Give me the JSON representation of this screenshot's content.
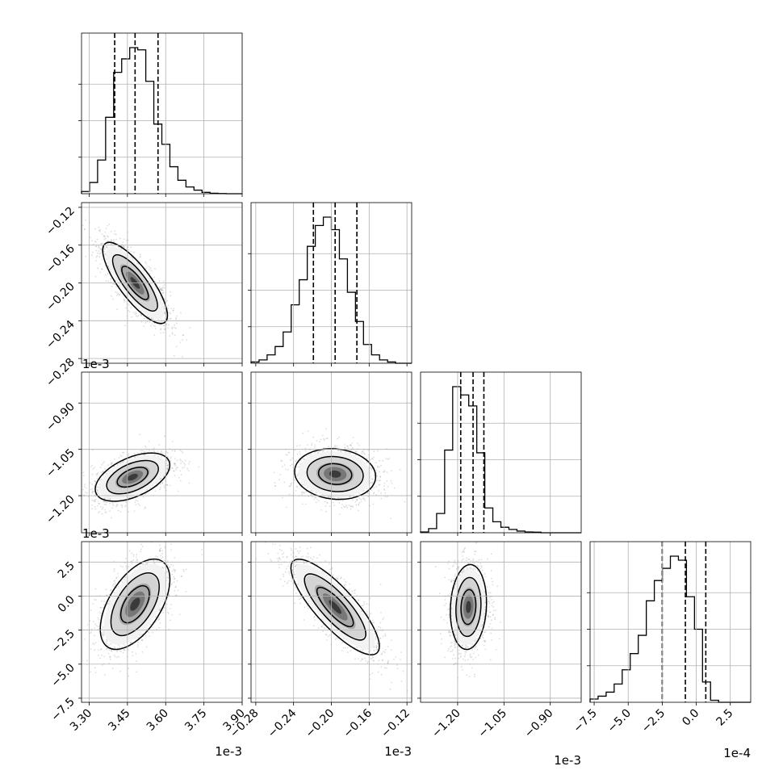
{
  "chart_data": {
    "type": "corner",
    "parameters": [
      {
        "range": [
          3.27,
          3.9
        ],
        "ticks": [
          3.3,
          3.45,
          3.6,
          3.75,
          3.9
        ],
        "tick_labels": [
          "3.30",
          "3.45",
          "3.60",
          "3.75",
          "3.90"
        ],
        "offset": "1e-3",
        "quantiles": [
          3.4,
          3.48,
          3.57
        ]
      },
      {
        "range": [
          -0.285,
          -0.115
        ],
        "ticks": [
          -0.28,
          -0.24,
          -0.2,
          -0.16,
          -0.12
        ],
        "tick_labels": [
          "−0.28",
          "−0.24",
          "−0.20",
          "−0.16",
          "−0.12"
        ],
        "offset": "1e-3",
        "quantiles": [
          -0.219,
          -0.196,
          -0.173
        ]
      },
      {
        "range": [
          -1.32,
          -0.8
        ],
        "ticks": [
          -1.2,
          -1.05,
          -0.9
        ],
        "tick_labels": [
          "−1.20",
          "−1.05",
          "−0.90"
        ],
        "offset": "1e-3",
        "quantiles": [
          -1.19,
          -1.15,
          -1.115
        ]
      },
      {
        "range": [
          -7.8,
          4.0
        ],
        "ticks": [
          -7.5,
          -5.0,
          -2.5,
          0.0,
          2.5
        ],
        "tick_labels": [
          "−7.5",
          "−5.0",
          "−2.5",
          "0.0",
          "2.5"
        ],
        "offset": "1e-4",
        "quantiles": [
          -2.5,
          -0.8,
          0.7
        ]
      }
    ],
    "histograms": [
      {
        "bin_start": 3.27,
        "bin_width": 0.0315,
        "counts": [
          5,
          25,
          75,
          170,
          270,
          300,
          325,
          320,
          250,
          155,
          110,
          60,
          30,
          15,
          8,
          3,
          1,
          0.5,
          0,
          0
        ]
      },
      {
        "bin_start": -0.285,
        "bin_width": 0.0085,
        "counts": [
          3,
          8,
          20,
          40,
          75,
          140,
          200,
          280,
          330,
          350,
          320,
          250,
          170,
          100,
          45,
          20,
          8,
          3,
          0,
          0
        ]
      },
      {
        "bin_start": -1.32,
        "bin_width": 0.026,
        "counts": [
          3,
          15,
          70,
          300,
          530,
          500,
          460,
          290,
          90,
          40,
          20,
          12,
          6,
          3,
          2,
          0,
          0,
          0,
          0,
          0
        ]
      },
      {
        "bin_start": -7.8,
        "bin_width": 0.59,
        "counts": [
          8,
          15,
          25,
          45,
          80,
          120,
          165,
          250,
          300,
          330,
          360,
          350,
          260,
          180,
          50,
          5,
          0,
          0,
          0,
          0
        ]
      }
    ],
    "pairs": [
      {
        "x": 0,
        "y": 1,
        "center": [
          3.48,
          -0.2
        ],
        "sd": [
          0.065,
          0.022
        ],
        "corr": -0.8
      },
      {
        "x": 0,
        "y": 2,
        "center": [
          3.47,
          -1.14
        ],
        "sd": [
          0.075,
          0.04
        ],
        "corr": 0.5
      },
      {
        "x": 1,
        "y": 2,
        "center": [
          -0.196,
          -1.13
        ],
        "sd": [
          0.022,
          0.042
        ],
        "corr": -0.1
      },
      {
        "x": 0,
        "y": 3,
        "center": [
          3.48,
          -0.6
        ],
        "sd": [
          0.07,
          1.7
        ],
        "corr": 0.55
      },
      {
        "x": 1,
        "y": 3,
        "center": [
          -0.196,
          -0.8
        ],
        "sd": [
          0.024,
          1.8
        ],
        "corr": -0.82
      },
      {
        "x": 2,
        "y": 3,
        "center": [
          -1.165,
          -0.8
        ],
        "sd": [
          0.03,
          1.6
        ],
        "corr": 0.1
      }
    ],
    "contour_levels": [
      0.5,
      1.0,
      1.5
    ],
    "grid": true,
    "colors": {
      "hist": "#000000",
      "scatter": "#9e9e9e",
      "contour": "#000000"
    }
  }
}
